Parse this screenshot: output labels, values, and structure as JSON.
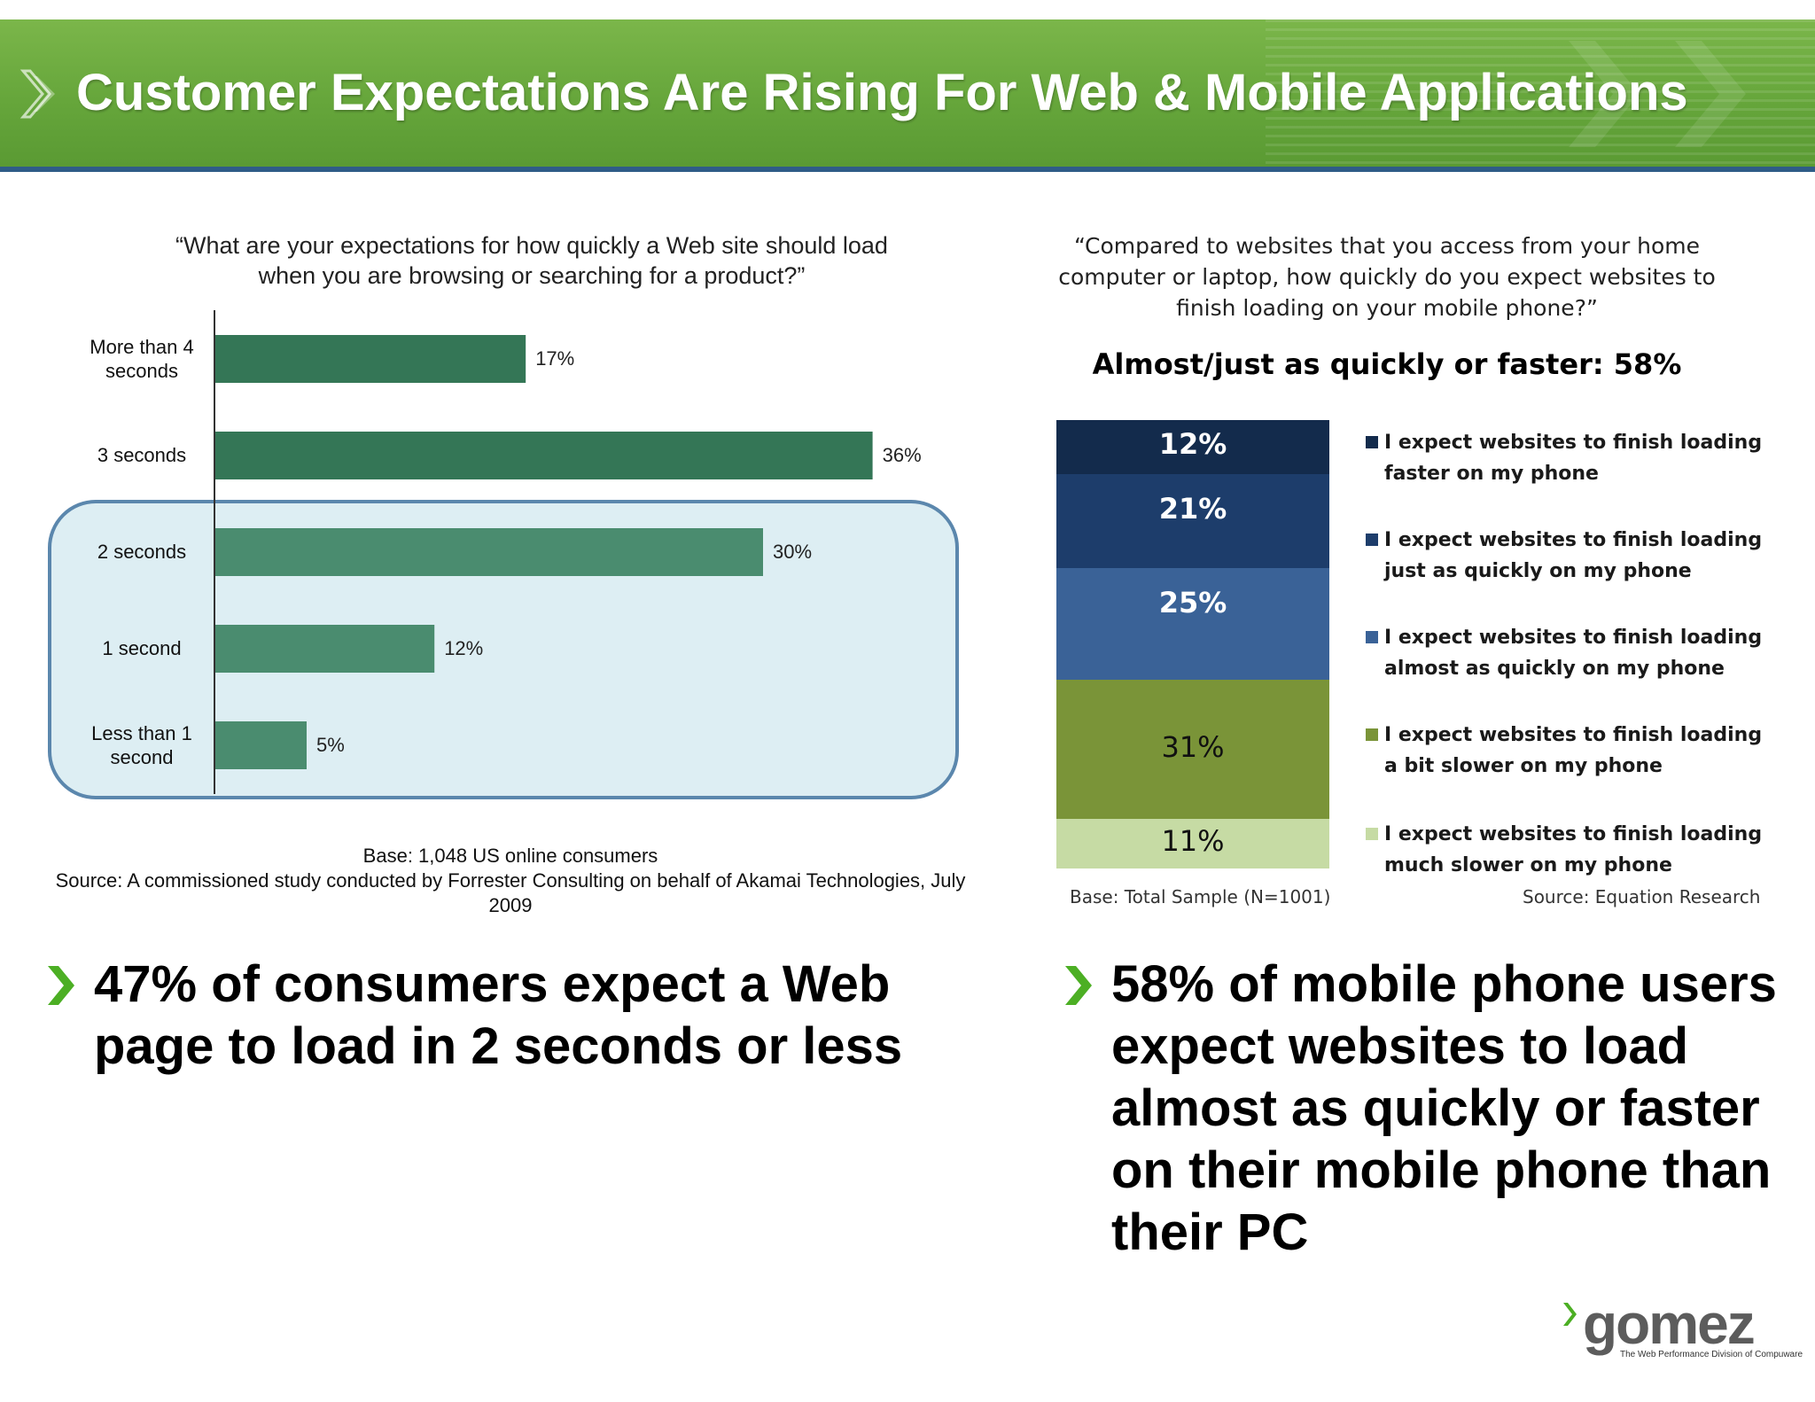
{
  "header": {
    "title": "Customer Expectations Are Rising For Web & Mobile Applications"
  },
  "left": {
    "question": "“What are your expectations for how quickly a Web site should load when you are browsing or searching for a product?”",
    "base": "Base: 1,048 US online consumers",
    "source": "Source: A commissioned study conducted by Forrester Consulting on behalf of Akamai Technologies, July 2009",
    "takeaway": "47% of consumers expect a Web page to load in 2 seconds or less"
  },
  "right": {
    "question": "“Compared to websites that you access from your home computer or laptop, how quickly do you expect websites to finish loading on your mobile phone?”",
    "subhead": "Almost/just as quickly or faster:  58%",
    "base": "Base: Total Sample (N=1001)",
    "source": "Source: Equation Research",
    "takeaway": "58% of mobile phone users expect websites to load almost as quickly or faster on their mobile phone than their PC"
  },
  "chart_data": [
    {
      "type": "bar",
      "orientation": "horizontal",
      "title": "“What are your expectations for how quickly a Web site should load when you are browsing or searching for a product?”",
      "categories": [
        "More than 4 seconds",
        "3 seconds",
        "2 seconds",
        "1 second",
        "Less than 1 second"
      ],
      "values": [
        17,
        36,
        30,
        12,
        5
      ],
      "value_labels": [
        "17%",
        "36%",
        "30%",
        "12%",
        "5%"
      ],
      "value_unit": "%",
      "xlim": [
        0,
        40
      ],
      "highlighted_categories": [
        "2 seconds",
        "1 second",
        "Less than 1 second"
      ],
      "colors": {
        "top": "#347656",
        "highlighted": "#4a8c6f",
        "highlight_box": "#ddeef3",
        "highlight_border": "#5b87ad"
      },
      "grid": false
    },
    {
      "type": "bar",
      "orientation": "stacked-vertical",
      "title": "“Compared to websites that you access from your home computer or laptop, how quickly do you expect websites to finish loading on your mobile phone?”",
      "segments": [
        {
          "name": "I expect websites to finish loading faster on my phone",
          "value": 12,
          "label": "12%",
          "color": "#132b4c",
          "text_color": "#ffffff"
        },
        {
          "name": "I expect websites to finish loading just as quickly on my phone",
          "value": 21,
          "label": "21%",
          "color": "#1d3d6b",
          "text_color": "#ffffff"
        },
        {
          "name": "I expect websites to finish loading almost as quickly on my phone",
          "value": 25,
          "label": "25%",
          "color": "#3a6297",
          "text_color": "#ffffff"
        },
        {
          "name": "I expect websites to finish loading a bit slower on my phone",
          "value": 31,
          "label": "31%",
          "color": "#7a9438",
          "text_color": "#111111"
        },
        {
          "name": "I expect websites to finish loading much slower on my phone",
          "value": 11,
          "label": "11%",
          "color": "#c6dba4",
          "text_color": "#111111"
        }
      ],
      "legend": "right",
      "grid": false
    }
  ],
  "logo": {
    "word": "gomez",
    "tagline": "The Web Performance Division of Compuware"
  },
  "colors": {
    "banner": "#66a63b",
    "banner_line": "#2f5c87",
    "chevron": "#4caf24"
  },
  "icons": {
    "header": "chevron-right-icon",
    "bullet": "chevron-right-icon"
  }
}
